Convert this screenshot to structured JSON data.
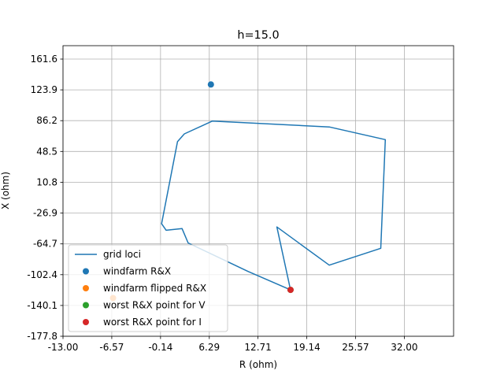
{
  "chart_data": {
    "type": "line",
    "title": "h=15.0",
    "xlabel": "R (ohm)",
    "ylabel": "X (ohm)",
    "xlim": [
      -13.0,
      38.5
    ],
    "ylim": [
      -177.8,
      178.0
    ],
    "x_ticks": [
      "-13.00",
      "-6.57",
      "-0.14",
      "6.29",
      "12.71",
      "19.14",
      "25.57",
      "32.00"
    ],
    "x_tick_values": [
      -13.0,
      -6.57,
      -0.14,
      6.29,
      12.71,
      19.14,
      25.57,
      32.0
    ],
    "y_ticks": [
      "161.6",
      "123.9",
      "86.2",
      "48.5",
      "10.8",
      "-26.9",
      "-64.7",
      "-102.4",
      "-140.1",
      "-177.8"
    ],
    "y_tick_values": [
      161.6,
      123.9,
      86.2,
      48.5,
      10.8,
      -26.9,
      -64.7,
      -102.4,
      -140.1,
      -177.8
    ],
    "grid": true,
    "legend_position": "lower-left",
    "series": [
      {
        "name": "grid loci",
        "kind": "line",
        "color": "#1f77b4",
        "points": [
          [
            17.0,
            -121.0
          ],
          [
            11.4,
            -98.4
          ],
          [
            3.5,
            -63.5
          ],
          [
            2.7,
            -46.0
          ],
          [
            0.6,
            -48.0
          ],
          [
            0.0,
            -40.0
          ],
          [
            2.1,
            60.5
          ],
          [
            3.0,
            70.0
          ],
          [
            6.7,
            85.7
          ],
          [
            22.1,
            78.5
          ],
          [
            29.5,
            63.0
          ],
          [
            28.9,
            -70.1
          ],
          [
            22.1,
            -90.7
          ],
          [
            15.2,
            -44.0
          ],
          [
            17.0,
            -121.0
          ]
        ]
      },
      {
        "name": "windfarm R&X",
        "kind": "scatter",
        "color": "#1f77b4",
        "points": [
          [
            6.5,
            130.5
          ]
        ]
      },
      {
        "name": "windfarm flipped R&X",
        "kind": "scatter",
        "color": "#ff7f0e",
        "points": [
          [
            -6.4,
            -131.0
          ]
        ]
      },
      {
        "name": "worst R&X point for V",
        "kind": "scatter",
        "color": "#2ca02c",
        "points": [
          [
            17.0,
            -121.0
          ]
        ]
      },
      {
        "name": "worst R&X point for I",
        "kind": "scatter",
        "color": "#d62728",
        "points": [
          [
            17.0,
            -121.0
          ]
        ]
      }
    ]
  }
}
